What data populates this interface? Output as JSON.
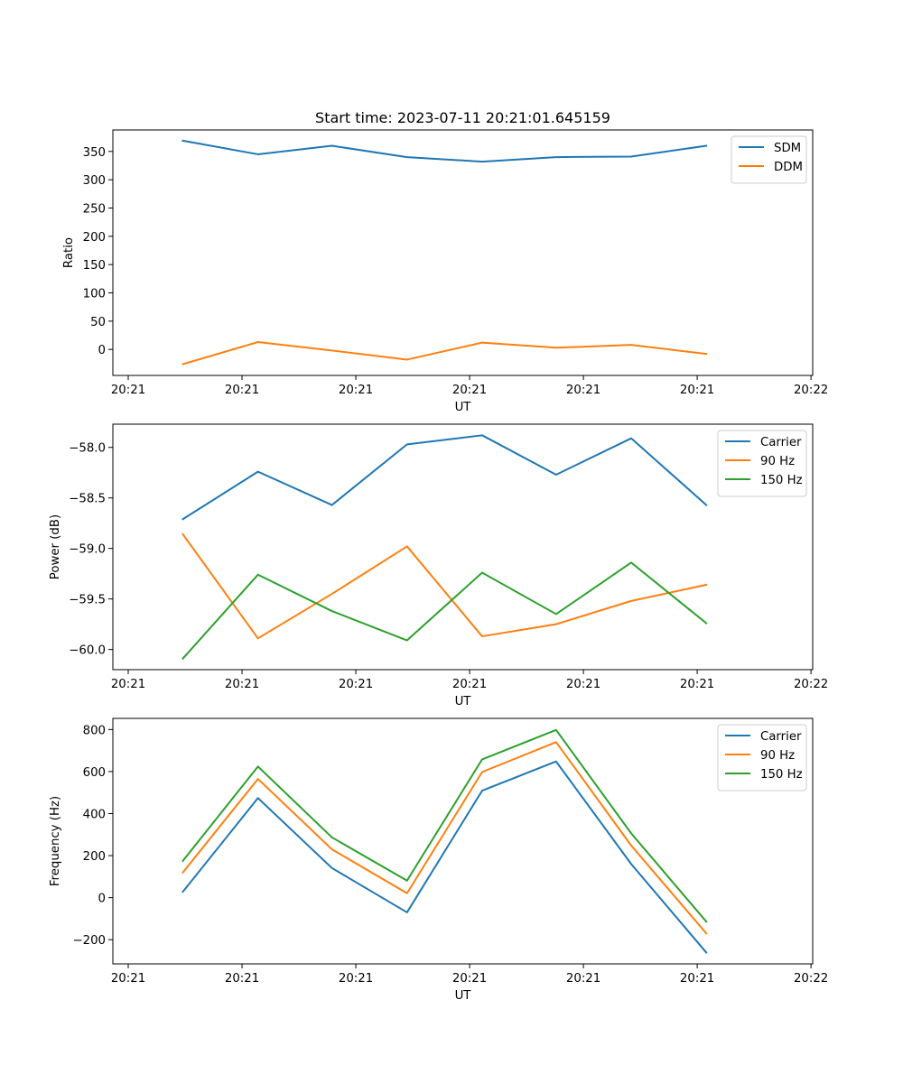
{
  "figure": {
    "title": "Start time: 2023-07-11 20:21:01.645159"
  },
  "chart_data": [
    {
      "type": "line",
      "title": "Start time: 2023-07-11 20:21:01.645159",
      "xlabel": "UT",
      "ylabel": "Ratio",
      "x_units": "seconds after 20:21:00 UT",
      "x": [
        4.8,
        11.4,
        17.9,
        24.5,
        31.1,
        37.6,
        44.2,
        50.8
      ],
      "xlim": [
        -1.35,
        60.15
      ],
      "xticks": [
        0,
        10,
        20,
        30,
        40,
        50,
        60
      ],
      "xtick_labels": [
        "20:21",
        "20:21",
        "20:21",
        "20:21",
        "20:21",
        "20:21",
        "20:22"
      ],
      "ylim": [
        -46,
        388
      ],
      "yticks": [
        0,
        50,
        100,
        150,
        200,
        250,
        300,
        350
      ],
      "ytick_labels": [
        "0",
        "50",
        "100",
        "150",
        "200",
        "250",
        "300",
        "350"
      ],
      "grid": false,
      "legend": "top-right",
      "series": [
        {
          "name": "SDM",
          "color": "#1f77b4",
          "values": [
            369,
            345,
            360,
            340,
            332,
            340,
            341,
            360
          ]
        },
        {
          "name": "DDM",
          "color": "#ff7f0e",
          "values": [
            -26,
            13,
            -2,
            -18,
            12,
            3,
            8,
            -8
          ]
        }
      ]
    },
    {
      "type": "line",
      "title": "",
      "xlabel": "UT",
      "ylabel": "Power (dB)",
      "x_units": "seconds after 20:21:00 UT",
      "x": [
        4.8,
        11.4,
        17.9,
        24.5,
        31.1,
        37.6,
        44.2,
        50.8
      ],
      "xlim": [
        -1.35,
        60.15
      ],
      "xticks": [
        0,
        10,
        20,
        30,
        40,
        50,
        60
      ],
      "xtick_labels": [
        "20:21",
        "20:21",
        "20:21",
        "20:21",
        "20:21",
        "20:21",
        "20:22"
      ],
      "ylim": [
        -60.2,
        -57.77
      ],
      "yticks": [
        -60.0,
        -59.5,
        -59.0,
        -58.5,
        -58.0
      ],
      "ytick_labels": [
        "−60.0",
        "−59.5",
        "−59.0",
        "−58.5",
        "−58.0"
      ],
      "grid": false,
      "legend": "top-right",
      "series": [
        {
          "name": "Carrier",
          "color": "#1f77b4",
          "values": [
            -58.71,
            -58.24,
            -58.57,
            -57.97,
            -57.88,
            -58.27,
            -57.91,
            -58.57
          ]
        },
        {
          "name": "90 Hz",
          "color": "#ff7f0e",
          "values": [
            -58.86,
            -59.89,
            -59.45,
            -58.98,
            -59.87,
            -59.75,
            -59.52,
            -59.36
          ]
        },
        {
          "name": "150 Hz",
          "color": "#2ca02c",
          "values": [
            -60.09,
            -59.26,
            -59.62,
            -59.91,
            -59.24,
            -59.65,
            -59.14,
            -59.74
          ]
        }
      ]
    },
    {
      "type": "line",
      "title": "",
      "xlabel": "UT",
      "ylabel": "Frequency (Hz)",
      "x_units": "seconds after 20:21:00 UT",
      "x": [
        4.8,
        11.4,
        17.9,
        24.5,
        31.1,
        37.6,
        44.2,
        50.8
      ],
      "xlim": [
        -1.35,
        60.15
      ],
      "xticks": [
        0,
        10,
        20,
        30,
        40,
        50,
        60
      ],
      "xtick_labels": [
        "20:21",
        "20:21",
        "20:21",
        "20:21",
        "20:21",
        "20:21",
        "20:22"
      ],
      "ylim": [
        -315,
        853
      ],
      "yticks": [
        -200,
        0,
        200,
        400,
        600,
        800
      ],
      "ytick_labels": [
        "−200",
        "0",
        "200",
        "400",
        "600",
        "800"
      ],
      "grid": false,
      "legend": "top-right",
      "series": [
        {
          "name": "Carrier",
          "color": "#1f77b4",
          "values": [
            28,
            474,
            141,
            -70,
            509,
            648,
            160,
            -261
          ]
        },
        {
          "name": "90 Hz",
          "color": "#ff7f0e",
          "values": [
            120,
            565,
            230,
            21,
            598,
            740,
            248,
            -170
          ]
        },
        {
          "name": "150 Hz",
          "color": "#2ca02c",
          "values": [
            175,
            624,
            287,
            81,
            658,
            798,
            306,
            -114
          ]
        }
      ]
    }
  ]
}
